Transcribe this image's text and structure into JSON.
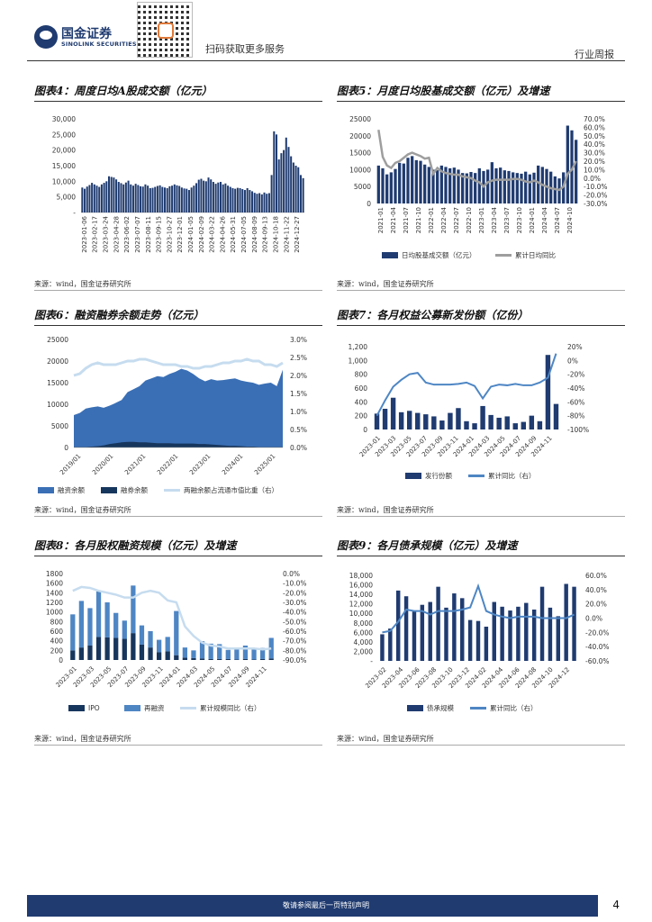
{
  "header": {
    "company_cn": "国金证券",
    "company_en": "SINOLINK SECURITIES",
    "qr_caption": "扫码获取更多服务",
    "report_type": "行业周报"
  },
  "footer": {
    "disclaimer": "敬请参阅最后一页特别声明",
    "page_number": "4"
  },
  "charts": [
    {
      "title": "图表4：周度日均A股成交额（亿元）",
      "source": "来源：wind，国金证券研究所",
      "chart_data": {
        "type": "bar",
        "title": "图表4：周度日均A股成交额（亿元）",
        "ylim": [
          0,
          30000
        ],
        "yticks": [
          "30,000",
          "25,000",
          "20,000",
          "15,000",
          "10,000",
          "5,000",
          "-"
        ],
        "xticks": [
          "2023-01-06",
          "2023-02-17",
          "2023-03-24",
          "2023-04-28",
          "2023-06-02",
          "2023-07-07",
          "2023-08-11",
          "2023-09-15",
          "2023-10-27",
          "2023-12-01",
          "2024-01-05",
          "2024-02-09",
          "2024-03-22",
          "2024-04-26",
          "2024-05-31",
          "2024-07-05",
          "2024-08-09",
          "2024-09-13",
          "2024-10-18",
          "2024-11-22",
          "2024-12-27"
        ],
        "color": "#1f3b70",
        "values": [
          8000,
          7600,
          8300,
          8800,
          9500,
          9000,
          8600,
          8200,
          9000,
          9500,
          10000,
          11600,
          11400,
          11200,
          10600,
          9800,
          9400,
          9000,
          9600,
          10200,
          9000,
          8600,
          9200,
          8800,
          8400,
          8300,
          9000,
          8600,
          7800,
          7900,
          8200,
          8500,
          8700,
          8200,
          8000,
          7800,
          8400,
          8600,
          9000,
          8700,
          8500,
          8000,
          7700,
          7600,
          7200,
          8000,
          8600,
          9400,
          10500,
          10800,
          10200,
          10000,
          11200,
          10600,
          9800,
          9200,
          9600,
          9800,
          9000,
          9300,
          8600,
          8200,
          7800,
          7600,
          7900,
          7800,
          7500,
          7200,
          7800,
          7200,
          6800,
          6300,
          6000,
          6200,
          5800,
          6400,
          6000,
          6200,
          12000,
          26000,
          25000,
          17000,
          19000,
          20000,
          24000,
          21000,
          18000,
          16000,
          15000,
          14500,
          12000,
          11000
        ]
      }
    },
    {
      "title": "图表5：月度日均股基成交额（亿元）及增速",
      "source": "来源：wind，国金证券研究所",
      "chart_data": {
        "type": "bar",
        "title": "图表5：月度日均股基成交额（亿元）及增速",
        "ylim": [
          0,
          25000
        ],
        "yticks": [
          "25000",
          "20000",
          "15000",
          "10000",
          "5000",
          "0"
        ],
        "y2ticks": [
          "70.0%",
          "60.0%",
          "50.0%",
          "40.0%",
          "30.0%",
          "20.0%",
          "10.0%",
          "0.0%",
          "-10.0%",
          "-20.0%",
          "-30.0%"
        ],
        "y2lim": [
          -30,
          70
        ],
        "xticks": [
          "2021-01",
          "2021-04",
          "2021-07",
          "2021-10",
          "2022-01",
          "2022-04",
          "2022-07",
          "2022-10",
          "2023-01",
          "2023-04",
          "2023-07",
          "2023-10",
          "2024-01",
          "2024-04",
          "2024-07",
          "2024-10"
        ],
        "series": [
          {
            "name": "日均股基成交额（亿元）",
            "color": "#1f3b70",
            "values": [
              11200,
              10400,
              8600,
              9200,
              10200,
              12000,
              11800,
              13500,
              14000,
              12800,
              12600,
              11500,
              10800,
              10000,
              9800,
              11200,
              10800,
              10400,
              10600,
              10000,
              9000,
              8900,
              9300,
              9000,
              10400,
              9600,
              10000,
              12200,
              10400,
              10600,
              9800,
              9600,
              9200,
              9000,
              8800,
              9400,
              8600,
              9100,
              11200,
              10800,
              10200,
              9400,
              8000,
              7400,
              9200,
              23000,
              21600,
              18800
            ]
          },
          {
            "name": "累计日均同比",
            "color": "#9e9e9e",
            "values": [
              57,
              25,
              15,
              12,
              18,
              20,
              24,
              28,
              30,
              28,
              26,
              23,
              24,
              5,
              12,
              8,
              6,
              5,
              4,
              4,
              2,
              1,
              0,
              -3,
              -5,
              -10,
              -5,
              -3,
              -2,
              -2,
              -2,
              -2,
              -1,
              -1,
              -2,
              -4,
              -5,
              -3,
              -5,
              -8,
              -10,
              -12,
              -13,
              -14,
              -10,
              5,
              10,
              20
            ]
          }
        ]
      }
    },
    {
      "title": "图表6：融资融券余额走势（亿元）",
      "source": "来源：wind，国金证券研究所",
      "chart_data": {
        "type": "area",
        "title": "图表6：融资融券余额走势（亿元）",
        "ylim": [
          0,
          25000
        ],
        "yticks": [
          "25000",
          "20000",
          "15000",
          "10000",
          "5000",
          "0"
        ],
        "y2ticks": [
          "3.0%",
          "2.5%",
          "2.0%",
          "1.5%",
          "1.0%",
          "0.5%",
          "0.0%"
        ],
        "y2lim": [
          0,
          3
        ],
        "xticks": [
          "2019/01",
          "2020/01",
          "2021/01",
          "2022/01",
          "2023/01",
          "2024/01",
          "2025/01"
        ],
        "series": [
          {
            "name": "融资余额",
            "color": "#3a6fb5",
            "values": [
              7500,
              8000,
              9000,
              9300,
              9500,
              9200,
              9700,
              10300,
              11000,
              12800,
              13500,
              14200,
              15500,
              16000,
              16500,
              16300,
              17000,
              17500,
              18200,
              17800,
              17000,
              16000,
              15300,
              15800,
              15500,
              15600,
              15800,
              16000,
              15500,
              15200,
              15000,
              14500,
              14800,
              15000,
              14200,
              18000
            ]
          },
          {
            "name": "融券余额",
            "color": "#17365d",
            "values": [
              100,
              100,
              100,
              200,
              300,
              500,
              800,
              1000,
              1200,
              1300,
              1300,
              1200,
              1200,
              1100,
              1000,
              1000,
              1000,
              900,
              900,
              900,
              900,
              800,
              800,
              700,
              600,
              500,
              400,
              400,
              300,
              200,
              200,
              100,
              100,
              100,
              100,
              100
            ]
          },
          {
            "name": "两融余额占流通市值比重（右）",
            "color": "#c6dcef",
            "values": [
              2.0,
              2.05,
              2.2,
              2.3,
              2.35,
              2.3,
              2.3,
              2.3,
              2.35,
              2.4,
              2.4,
              2.45,
              2.45,
              2.4,
              2.35,
              2.3,
              2.3,
              2.3,
              2.25,
              2.25,
              2.2,
              2.2,
              2.25,
              2.25,
              2.3,
              2.35,
              2.35,
              2.4,
              2.4,
              2.45,
              2.4,
              2.4,
              2.3,
              2.3,
              2.25,
              2.35
            ]
          }
        ]
      }
    },
    {
      "title": "图表7：各月权益公募新发份额（亿份）",
      "source": "来源：wind，国金证券研究所",
      "chart_data": {
        "type": "bar",
        "title": "图表7：各月权益公募新发份额（亿份）",
        "ylim": [
          0,
          1200
        ],
        "yticks": [
          "1,200",
          "1,000",
          "800",
          "600",
          "400",
          "200",
          "0"
        ],
        "y2ticks": [
          "20%",
          "0%",
          "-20%",
          "-40%",
          "-60%",
          "-80%",
          "-100%"
        ],
        "y2lim": [
          -100,
          20
        ],
        "xticks": [
          "2023-01",
          "2023-03",
          "2023-05",
          "2023-07",
          "2023-09",
          "2023-11",
          "2024-01",
          "2024-03",
          "2024-05",
          "2024-07",
          "2024-09",
          "2024-11"
        ],
        "series": [
          {
            "name": "发行份额",
            "color": "#1f3b70",
            "values": [
              230,
              300,
              460,
              250,
              270,
              240,
              220,
              190,
              130,
              240,
              310,
              120,
              90,
              340,
              210,
              170,
              190,
              90,
              110,
              200,
              120,
              1080,
              370
            ]
          },
          {
            "name": "累计同比（右）",
            "color": "#4e86c4",
            "values": [
              -80,
              -58,
              -38,
              -28,
              -20,
              -18,
              -32,
              -35,
              -35,
              -35,
              -34,
              -32,
              -37,
              -55,
              -38,
              -35,
              -36,
              -34,
              -36,
              -36,
              -32,
              -25,
              10
            ]
          }
        ]
      }
    },
    {
      "title": "图表8：各月股权融资规模（亿元）及增速",
      "source": "来源：wind，国金证券研究所",
      "chart_data": {
        "type": "bar",
        "title": "图表8：各月股权融资规模（亿元）及增速",
        "ylim": [
          0,
          1800
        ],
        "yticks": [
          "1800",
          "1600",
          "1400",
          "1200",
          "1000",
          "800",
          "600",
          "400",
          "200",
          "0"
        ],
        "y2ticks": [
          "0.0%",
          "-10.0%",
          "-20.0%",
          "-30.0%",
          "-40.0%",
          "-50.0%",
          "-60.0%",
          "-70.0%",
          "-80.0%",
          "-90.0%"
        ],
        "y2lim": [
          -90,
          0
        ],
        "xticks": [
          "2023-01",
          "2023-03",
          "2023-05",
          "2023-07",
          "2023-09",
          "2023-11",
          "2024-01",
          "2024-03",
          "2024-05",
          "2024-07",
          "2024-09",
          "2024-11"
        ],
        "series": [
          {
            "name": "IPO",
            "color": "#17365d",
            "values": [
              200,
              260,
              300,
              480,
              470,
              460,
              440,
              560,
              320,
              260,
              160,
              180,
              100,
              50,
              40,
              30,
              20,
              20,
              20,
              10,
              20,
              10,
              20,
              30
            ]
          },
          {
            "name": "再融资",
            "color": "#4e86c4",
            "values": [
              950,
              1230,
              1080,
              1430,
              1200,
              980,
              820,
              1550,
              720,
              600,
              420,
              480,
              1020,
              260,
              200,
              390,
              340,
              330,
              210,
              240,
              300,
              230,
              250,
              460
            ]
          },
          {
            "name": "累计规模同比（右）",
            "color": "#c6dcef",
            "values": [
              -18,
              -14,
              -15,
              -18,
              -20,
              -22,
              -25,
              -25,
              -20,
              -18,
              -20,
              -28,
              -30,
              -55,
              -65,
              -72,
              -75,
              -76,
              -78,
              -78,
              -78,
              -78,
              -79,
              -78
            ]
          }
        ]
      }
    },
    {
      "title": "图表9：各月债承规模（亿元）及增速",
      "source": "来源：wind，国金证券研究所",
      "chart_data": {
        "type": "bar",
        "title": "图表9：各月债承规模（亿元）及增速",
        "ylim": [
          0,
          18000
        ],
        "yticks": [
          "18,000",
          "16,000",
          "14,000",
          "12,000",
          "10,000",
          "8,000",
          "6,000",
          "4,000",
          "2,000",
          "-"
        ],
        "y2ticks": [
          "60.0%",
          "40.0%",
          "20.0%",
          "0.0%",
          "-20.0%",
          "-40.0%",
          "-60.0%"
        ],
        "y2lim": [
          -60,
          60
        ],
        "xticks": [
          "2023-02",
          "2023-04",
          "2023-06",
          "2023-08",
          "2023-10",
          "2023-12",
          "2024-02",
          "2024-04",
          "2024-06",
          "2024-08",
          "2024-10",
          "2024-12"
        ],
        "series": [
          {
            "name": "债承规模",
            "color": "#1f3b70",
            "values": [
              5600,
              6800,
              14800,
              13600,
              10400,
              11800,
              12400,
              15600,
              11200,
              14200,
              13200,
              8600,
              8400,
              7200,
              12400,
              11400,
              10600,
              11400,
              12200,
              10800,
              15600,
              11200,
              9400,
              16200,
              15600
            ]
          },
          {
            "name": "累计同比（右）",
            "color": "#4e86c4",
            "values": [
              -20,
              -18,
              -5,
              12,
              10,
              10,
              5,
              10,
              10,
              10,
              12,
              15,
              45,
              10,
              5,
              2,
              0,
              2,
              2,
              2,
              0,
              0,
              0,
              0,
              5
            ]
          }
        ]
      }
    }
  ]
}
